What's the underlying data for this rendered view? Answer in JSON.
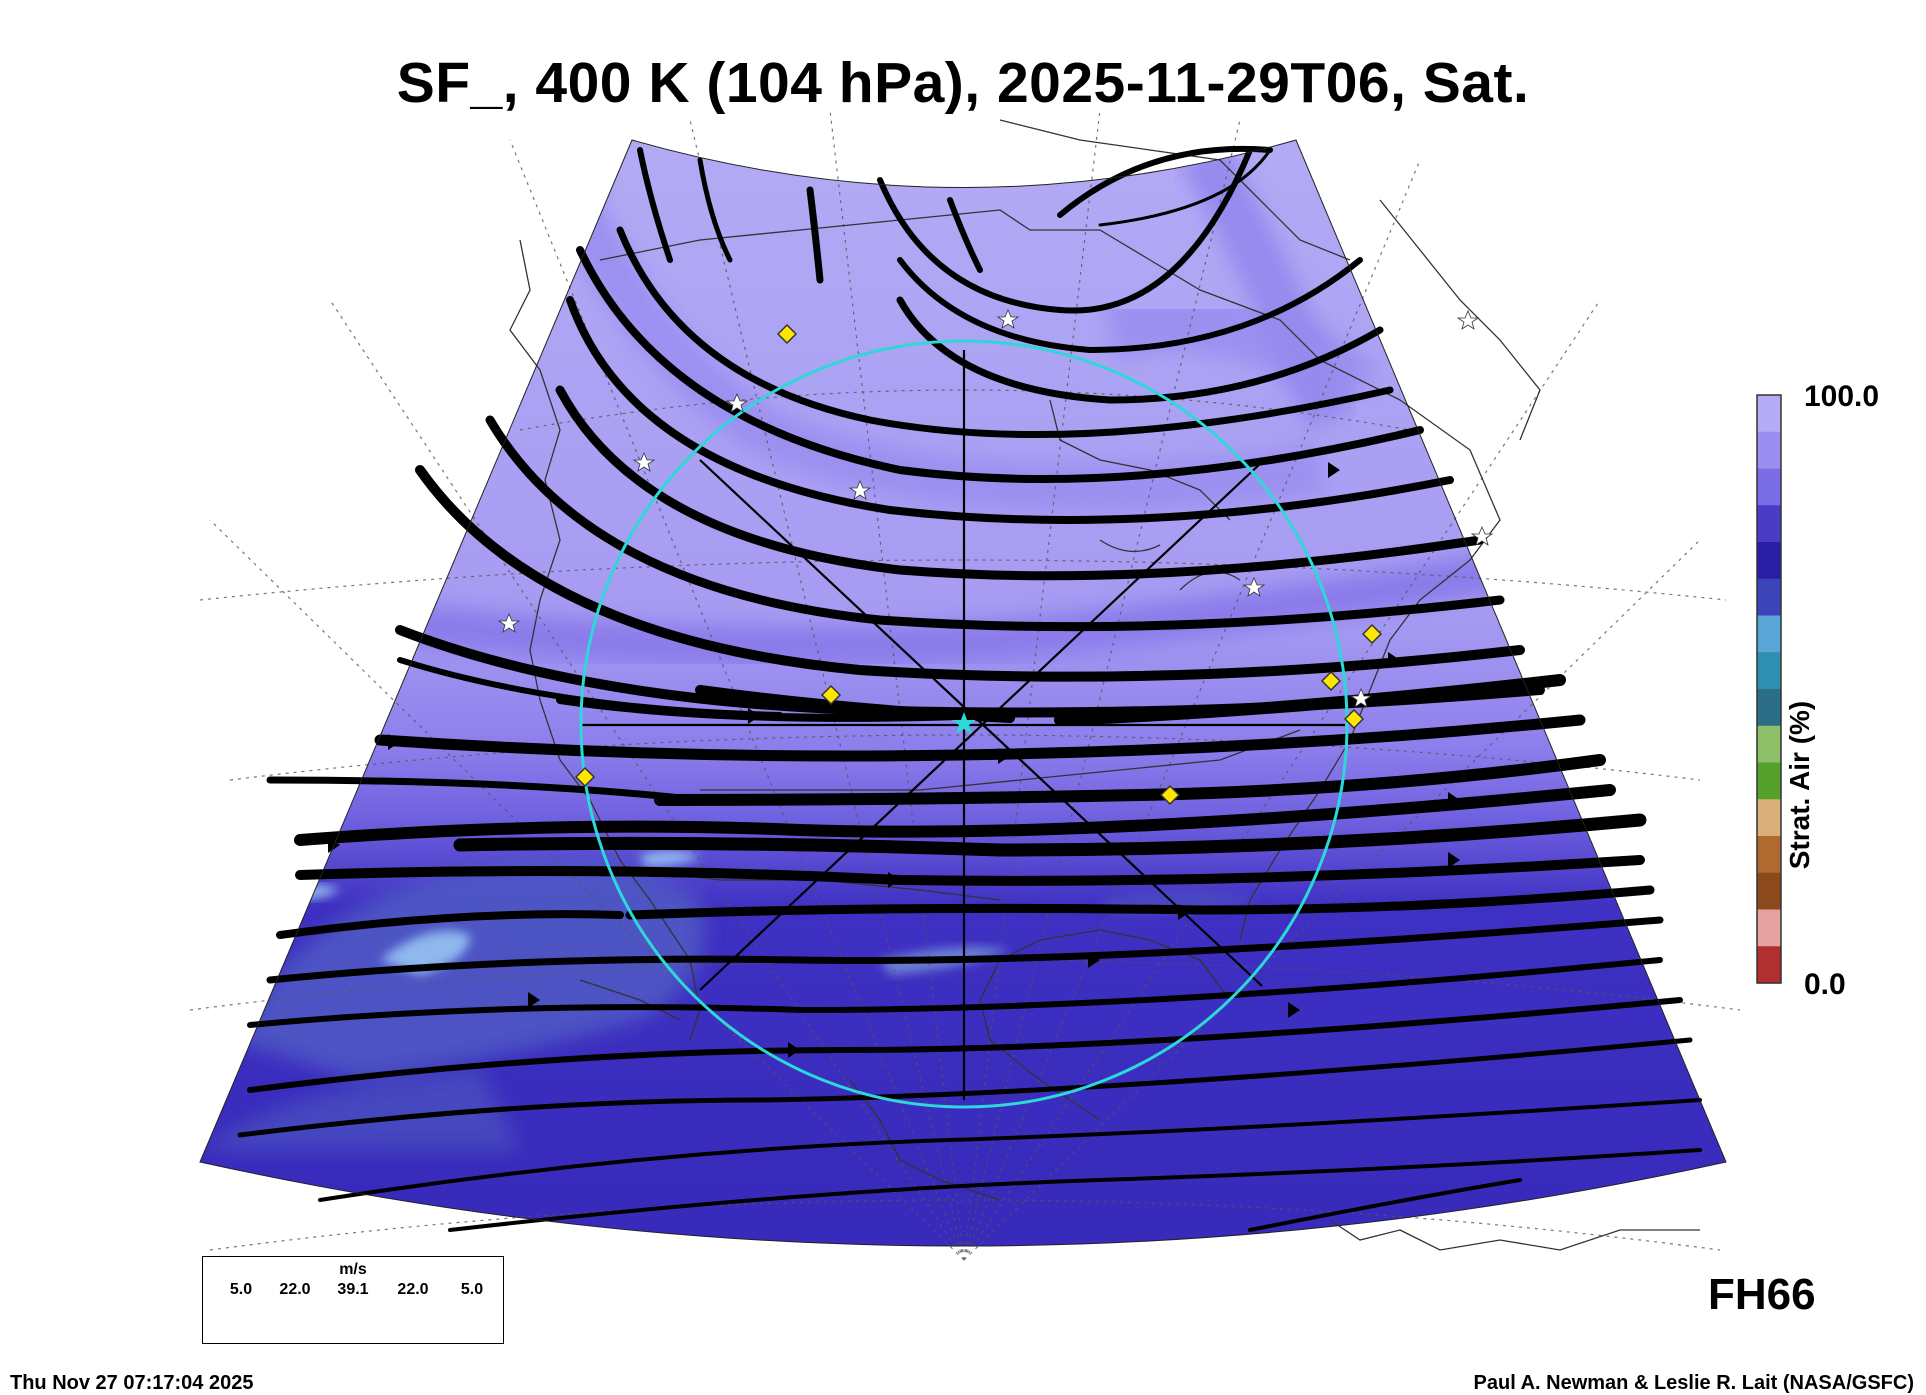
{
  "header": {
    "title": "SF_, 400 K (104 hPa), 2025-11-29T06, Sat."
  },
  "colorbar": {
    "label": "Strat. Air (%)",
    "max_label": "100.0",
    "min_label": "0.0",
    "colors_top_to_bottom": [
      "#b4acf4",
      "#9c8ef0",
      "#7b6de6",
      "#4b3cc6",
      "#2a1ea4",
      "#3b44b8",
      "#5aa6d8",
      "#2f8fb0",
      "#2a6f86",
      "#8ec06a",
      "#56a12c",
      "#d9b07a",
      "#b06a30",
      "#8c4a1c",
      "#e4a2a2",
      "#b03030"
    ]
  },
  "wind_legend": {
    "unit": "m/s",
    "speeds": [
      "5.0",
      "22.0",
      "39.1",
      "22.0",
      "5.0"
    ]
  },
  "forecast_hour": "FH66",
  "timestamp": "Thu Nov 27 07:17:04 2025",
  "credit": "Paul A. Newman & Leslie R. Lait (NASA/GSFC)",
  "map": {
    "colors": {
      "light_lavender": "#b3abf5",
      "mid_lavender": "#9a8ef0",
      "violet": "#7a6ae3",
      "deep_blue": "#3a2cc0",
      "slate_blue": "#4f58c4",
      "sky_blue": "#8fb8ee",
      "circle_cyan": "#2ed8d8",
      "marker_yellow": "#ffe600"
    },
    "icons": [
      "yellow-diamond-marker",
      "white-star-marker",
      "cyan-center-star"
    ]
  }
}
